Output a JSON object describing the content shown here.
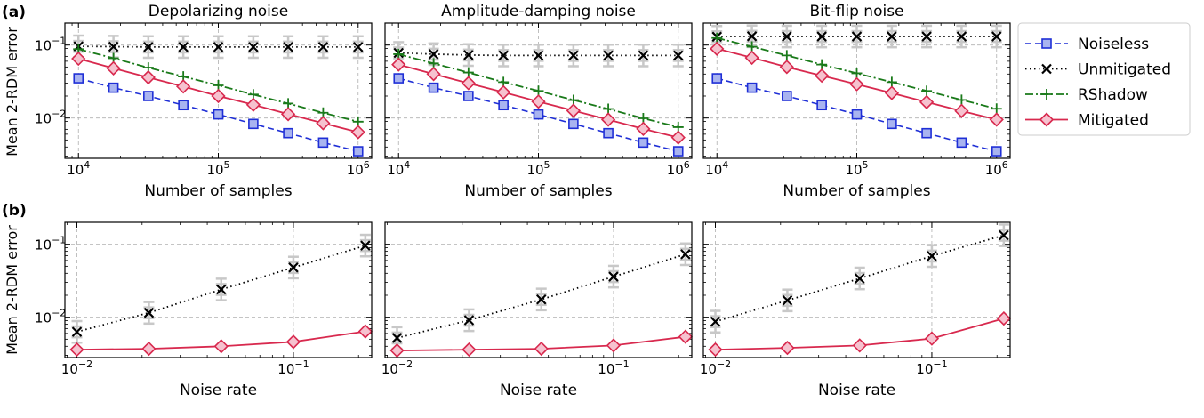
{
  "panel_labels": [
    "(a)",
    "(b)"
  ],
  "ylabel": "Mean 2-RDM error",
  "legend": [
    {
      "key": "noiseless",
      "label": "Noiseless"
    },
    {
      "key": "unmitigated",
      "label": "Unmitigated"
    },
    {
      "key": "rshadow",
      "label": "RShadow"
    },
    {
      "key": "mitigated",
      "label": "Mitigated"
    }
  ],
  "colors": {
    "noiseless": "#1f2fd6",
    "unmitigated": "#000000",
    "rshadow": "#1a7a1a",
    "mitigated": "#d8294e",
    "errorbar": "#c8c8c8",
    "grid": "#b0b0b0"
  },
  "chart_data": [
    {
      "type": "line",
      "row": "a",
      "title": "Depolarizing noise",
      "xlabel": "Number of samples",
      "xscale": "log",
      "yscale": "log",
      "xlim": [
        8000,
        1250000
      ],
      "ylim": [
        0.0028,
        0.2
      ],
      "grid": true,
      "xticks": [
        {
          "value": 10000,
          "base": "10",
          "exp": "4"
        },
        {
          "value": 100000,
          "base": "10",
          "exp": "5"
        },
        {
          "value": 1000000,
          "base": "10",
          "exp": "6"
        }
      ],
      "yticks": [
        {
          "value": 0.01,
          "base": "10",
          "exp": "−2"
        },
        {
          "value": 0.1,
          "base": "10",
          "exp": "−1"
        }
      ],
      "x": [
        10000,
        17800,
        31600,
        56200,
        100000,
        178000,
        316000,
        562000,
        1000000
      ],
      "series": [
        {
          "key": "noiseless",
          "values": [
            0.035,
            0.026,
            0.02,
            0.015,
            0.0112,
            0.0083,
            0.0062,
            0.0046,
            0.0035
          ]
        },
        {
          "key": "unmitigated",
          "values": [
            0.096,
            0.095,
            0.094,
            0.094,
            0.094,
            0.094,
            0.094,
            0.094,
            0.094
          ],
          "errorbars": true
        },
        {
          "key": "rshadow",
          "values": [
            0.088,
            0.066,
            0.049,
            0.037,
            0.028,
            0.021,
            0.0158,
            0.0118,
            0.0089
          ]
        },
        {
          "key": "mitigated",
          "values": [
            0.065,
            0.048,
            0.036,
            0.027,
            0.02,
            0.0152,
            0.0113,
            0.0085,
            0.0064
          ]
        }
      ]
    },
    {
      "type": "line",
      "row": "a",
      "title": "Amplitude-damping noise",
      "xlabel": "Number of samples",
      "xscale": "log",
      "yscale": "log",
      "xlim": [
        8000,
        1250000
      ],
      "ylim": [
        0.0028,
        0.2
      ],
      "grid": true,
      "xticks": [
        {
          "value": 10000,
          "base": "10",
          "exp": "4"
        },
        {
          "value": 100000,
          "base": "10",
          "exp": "5"
        },
        {
          "value": 1000000,
          "base": "10",
          "exp": "6"
        }
      ],
      "yticks": [
        {
          "value": 0.01,
          "base": "10",
          "exp": "−2"
        },
        {
          "value": 0.1,
          "base": "10",
          "exp": "−1"
        }
      ],
      "x": [
        10000,
        17800,
        31600,
        56200,
        100000,
        178000,
        316000,
        562000,
        1000000
      ],
      "series": [
        {
          "key": "noiseless",
          "values": [
            0.035,
            0.026,
            0.02,
            0.015,
            0.0112,
            0.0083,
            0.0062,
            0.0046,
            0.0035
          ]
        },
        {
          "key": "unmitigated",
          "values": [
            0.078,
            0.075,
            0.073,
            0.072,
            0.072,
            0.072,
            0.072,
            0.072,
            0.072
          ],
          "errorbars": true
        },
        {
          "key": "rshadow",
          "values": [
            0.075,
            0.056,
            0.042,
            0.031,
            0.0235,
            0.0176,
            0.0133,
            0.0099,
            0.0075
          ]
        },
        {
          "key": "mitigated",
          "values": [
            0.054,
            0.04,
            0.03,
            0.0225,
            0.0168,
            0.0126,
            0.0095,
            0.0071,
            0.0054
          ]
        }
      ]
    },
    {
      "type": "line",
      "row": "a",
      "title": "Bit-flip noise",
      "xlabel": "Number of samples",
      "xscale": "log",
      "yscale": "log",
      "xlim": [
        8000,
        1250000
      ],
      "ylim": [
        0.0028,
        0.2
      ],
      "grid": true,
      "xticks": [
        {
          "value": 10000,
          "base": "10",
          "exp": "4"
        },
        {
          "value": 100000,
          "base": "10",
          "exp": "5"
        },
        {
          "value": 1000000,
          "base": "10",
          "exp": "6"
        }
      ],
      "yticks": [
        {
          "value": 0.01,
          "base": "10",
          "exp": "−2"
        },
        {
          "value": 0.1,
          "base": "10",
          "exp": "−1"
        }
      ],
      "x": [
        10000,
        17800,
        31600,
        56200,
        100000,
        178000,
        316000,
        562000,
        1000000
      ],
      "series": [
        {
          "key": "noiseless",
          "values": [
            0.035,
            0.026,
            0.02,
            0.015,
            0.0112,
            0.0083,
            0.0062,
            0.0046,
            0.0035
          ]
        },
        {
          "key": "unmitigated",
          "values": [
            0.13,
            0.132,
            0.131,
            0.131,
            0.131,
            0.131,
            0.131,
            0.131,
            0.131
          ],
          "errorbars": true
        },
        {
          "key": "rshadow",
          "values": [
            0.125,
            0.095,
            0.072,
            0.054,
            0.041,
            0.031,
            0.0235,
            0.0177,
            0.0134
          ]
        },
        {
          "key": "mitigated",
          "values": [
            0.089,
            0.067,
            0.05,
            0.038,
            0.029,
            0.022,
            0.0165,
            0.0125,
            0.0095
          ]
        }
      ]
    },
    {
      "type": "line",
      "row": "b",
      "xlabel": "Noise rate",
      "xscale": "log",
      "yscale": "log",
      "xlim": [
        0.0088,
        0.23
      ],
      "ylim": [
        0.0028,
        0.2
      ],
      "grid": true,
      "xticks": [
        {
          "value": 0.01,
          "base": "10",
          "exp": "−2"
        },
        {
          "value": 0.1,
          "base": "10",
          "exp": "−1"
        }
      ],
      "yticks": [
        {
          "value": 0.01,
          "base": "10",
          "exp": "−2"
        },
        {
          "value": 0.1,
          "base": "10",
          "exp": "−1"
        }
      ],
      "x": [
        0.01,
        0.0215,
        0.0464,
        0.1,
        0.215
      ],
      "series": [
        {
          "key": "unmitigated",
          "values": [
            0.0063,
            0.0115,
            0.024,
            0.048,
            0.096
          ],
          "errorbars": true
        },
        {
          "key": "mitigated",
          "values": [
            0.0036,
            0.0037,
            0.004,
            0.0046,
            0.0064
          ]
        }
      ]
    },
    {
      "type": "line",
      "row": "b",
      "xlabel": "Noise rate",
      "xscale": "log",
      "yscale": "log",
      "xlim": [
        0.0088,
        0.23
      ],
      "ylim": [
        0.0028,
        0.2
      ],
      "grid": true,
      "xticks": [
        {
          "value": 0.01,
          "base": "10",
          "exp": "−2"
        },
        {
          "value": 0.1,
          "base": "10",
          "exp": "−1"
        }
      ],
      "yticks": [
        {
          "value": 0.01,
          "base": "10",
          "exp": "−2"
        },
        {
          "value": 0.1,
          "base": "10",
          "exp": "−1"
        }
      ],
      "x": [
        0.01,
        0.0215,
        0.0464,
        0.1,
        0.215
      ],
      "series": [
        {
          "key": "unmitigated",
          "values": [
            0.0052,
            0.0091,
            0.0175,
            0.036,
            0.073
          ],
          "errorbars": true
        },
        {
          "key": "mitigated",
          "values": [
            0.0035,
            0.0036,
            0.0037,
            0.0041,
            0.0054
          ]
        }
      ]
    },
    {
      "type": "line",
      "row": "b",
      "xlabel": "Noise rate",
      "xscale": "log",
      "yscale": "log",
      "xlim": [
        0.0088,
        0.23
      ],
      "ylim": [
        0.0028,
        0.2
      ],
      "grid": true,
      "xticks": [
        {
          "value": 0.01,
          "base": "10",
          "exp": "−2"
        },
        {
          "value": 0.1,
          "base": "10",
          "exp": "−1"
        }
      ],
      "yticks": [
        {
          "value": 0.01,
          "base": "10",
          "exp": "−2"
        },
        {
          "value": 0.1,
          "base": "10",
          "exp": "−1"
        }
      ],
      "x": [
        0.01,
        0.0215,
        0.0464,
        0.1,
        0.215
      ],
      "series": [
        {
          "key": "unmitigated",
          "values": [
            0.0087,
            0.017,
            0.034,
            0.069,
            0.133
          ],
          "errorbars": true
        },
        {
          "key": "mitigated",
          "values": [
            0.0036,
            0.0038,
            0.0041,
            0.0051,
            0.0096
          ]
        }
      ]
    }
  ]
}
